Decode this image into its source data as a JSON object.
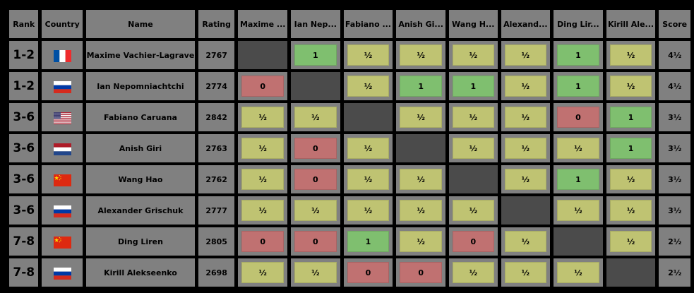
{
  "headers": {
    "rank": "Rank",
    "country": "Country",
    "name": "Name",
    "rating": "Rating",
    "score": "Score",
    "opponents": [
      "Maxime ...",
      "Ian Nep...",
      "Fabiano ...",
      "Anish Gi...",
      "Wang H...",
      "Alexand...",
      "Ding Lir...",
      "Kirill Ale..."
    ]
  },
  "colors": {
    "win": "#7fbf6f",
    "draw": "#bfc372",
    "loss": "#c07171",
    "self": "#4b4b4b",
    "cell_bg": "#808080",
    "background": "#000000"
  },
  "players": [
    {
      "rank": "1-2",
      "country": "France",
      "flag_icon": "france-flag-icon",
      "name": "Maxime Vachier-Lagrave",
      "rating": "2767",
      "results": [
        "",
        "1",
        "½",
        "½",
        "½",
        "½",
        "1",
        "½"
      ],
      "score": "4½"
    },
    {
      "rank": "1-2",
      "country": "Russia",
      "flag_icon": "russia-flag-icon",
      "name": "Ian Nepomniachtchi",
      "rating": "2774",
      "results": [
        "0",
        "",
        "½",
        "1",
        "1",
        "½",
        "1",
        "½"
      ],
      "score": "4½"
    },
    {
      "rank": "3-6",
      "country": "United States",
      "flag_icon": "usa-flag-icon",
      "name": "Fabiano Caruana",
      "rating": "2842",
      "results": [
        "½",
        "½",
        "",
        "½",
        "½",
        "½",
        "0",
        "1"
      ],
      "score": "3½"
    },
    {
      "rank": "3-6",
      "country": "Netherlands",
      "flag_icon": "netherlands-flag-icon",
      "name": "Anish Giri",
      "rating": "2763",
      "results": [
        "½",
        "0",
        "½",
        "",
        "½",
        "½",
        "½",
        "1"
      ],
      "score": "3½"
    },
    {
      "rank": "3-6",
      "country": "China",
      "flag_icon": "china-flag-icon",
      "name": "Wang Hao",
      "rating": "2762",
      "results": [
        "½",
        "0",
        "½",
        "½",
        "",
        "½",
        "1",
        "½"
      ],
      "score": "3½"
    },
    {
      "rank": "3-6",
      "country": "Russia",
      "flag_icon": "russia-flag-icon",
      "name": "Alexander Grischuk",
      "rating": "2777",
      "results": [
        "½",
        "½",
        "½",
        "½",
        "½",
        "",
        "½",
        "½"
      ],
      "score": "3½"
    },
    {
      "rank": "7-8",
      "country": "China",
      "flag_icon": "china-flag-icon",
      "name": "Ding Liren",
      "rating": "2805",
      "results": [
        "0",
        "0",
        "1",
        "½",
        "0",
        "½",
        "",
        "½"
      ],
      "score": "2½"
    },
    {
      "rank": "7-8",
      "country": "Russia",
      "flag_icon": "russia-flag-icon",
      "name": "Kirill Alekseenko",
      "rating": "2698",
      "results": [
        "½",
        "½",
        "0",
        "0",
        "½",
        "½",
        "½",
        ""
      ],
      "score": "2½"
    }
  ]
}
